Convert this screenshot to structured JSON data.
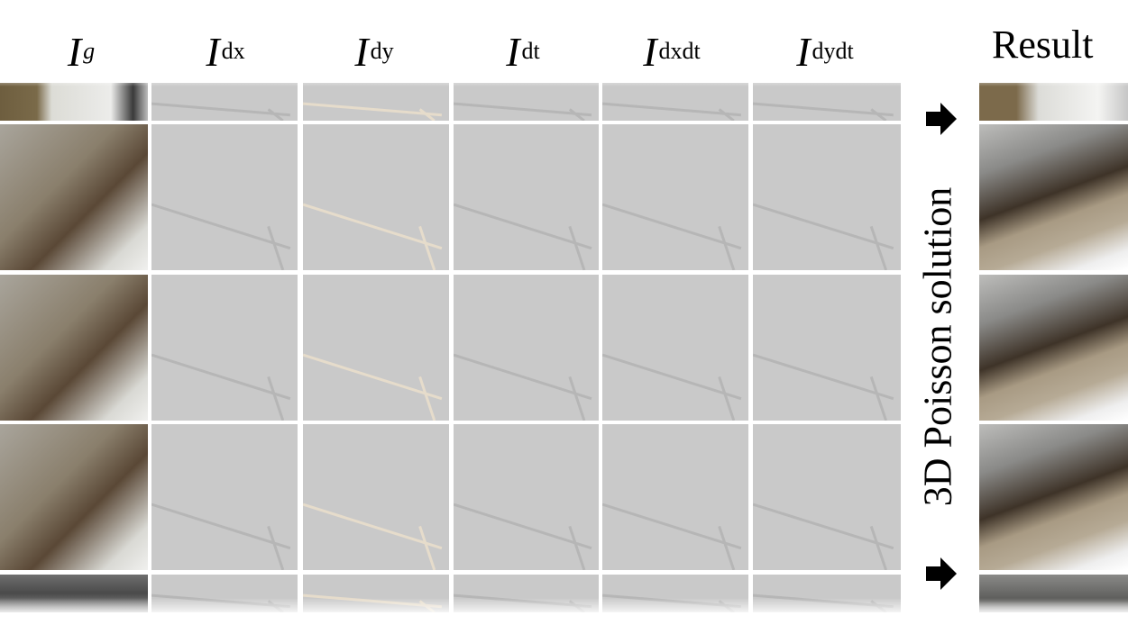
{
  "columns": [
    {
      "base": "I",
      "sup": "g",
      "sup_italic": true
    },
    {
      "base": "I",
      "sup_roman": "dx",
      "sup_italic_part": ""
    },
    {
      "base": "I",
      "sup_roman": "dy",
      "sup_italic_part": ""
    },
    {
      "base": "I",
      "sup_roman": "dt",
      "sup_italic_part": ""
    },
    {
      "base": "I",
      "sup_roman": "dxdt",
      "sup_italic_part": ""
    },
    {
      "base": "I",
      "sup_roman": "dydt",
      "sup_italic_part": ""
    }
  ],
  "header_sups": {
    "g": "g",
    "dx": "dx",
    "dy": "dy",
    "dt": "dt",
    "dxdt": "dxdt",
    "dydt": "dydt"
  },
  "result_label": "Result",
  "side_label": "3D Poisson solution",
  "icons": [
    "right-arrow-icon",
    "right-arrow-icon"
  ]
}
